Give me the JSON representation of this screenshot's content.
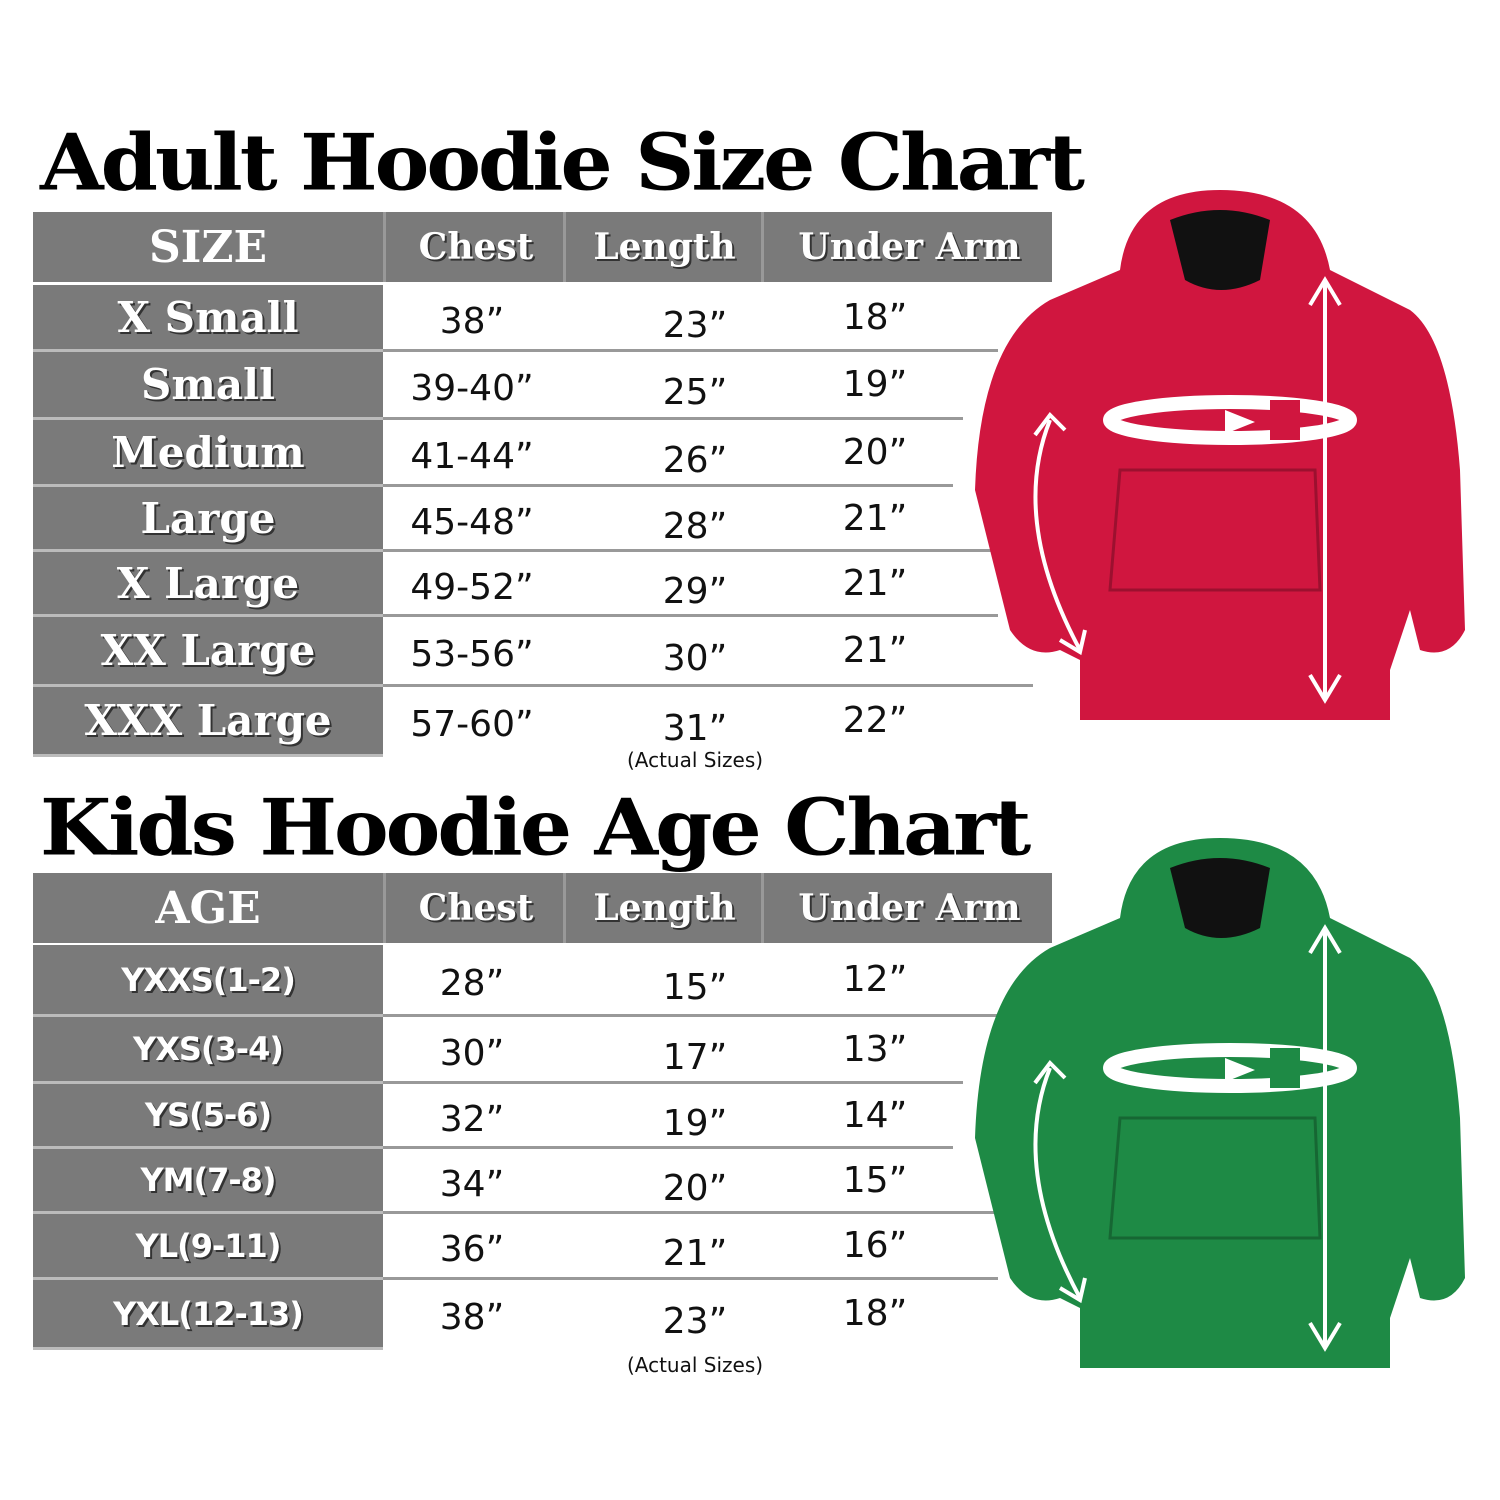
{
  "adult": {
    "title": "Adult Hoodie Size Chart",
    "headers": [
      "SIZE",
      "Chest",
      "Length",
      "Under Arm"
    ],
    "rows": [
      {
        "label": "X Small",
        "chest": "38”",
        "length": "23”",
        "under_arm": "18”"
      },
      {
        "label": "Small",
        "chest": "39-40”",
        "length": "25”",
        "under_arm": "19”"
      },
      {
        "label": "Medium",
        "chest": "41-44”",
        "length": "26”",
        "under_arm": "20”"
      },
      {
        "label": "Large",
        "chest": "45-48”",
        "length": "28”",
        "under_arm": "21”"
      },
      {
        "label": "X Large",
        "chest": "49-52”",
        "length": "29”",
        "under_arm": "21”"
      },
      {
        "label": "XX Large",
        "chest": "53-56”",
        "length": "30”",
        "under_arm": "21”"
      },
      {
        "label": "XXX Large",
        "chest": "57-60”",
        "length": "31”",
        "under_arm": "22”"
      }
    ],
    "note": "(Actual Sizes)",
    "hoodie_color": "#d0163f"
  },
  "kids": {
    "title": "Kids Hoodie Age Chart",
    "headers": [
      "AGE",
      "Chest",
      "Length",
      "Under Arm"
    ],
    "rows": [
      {
        "label": "YXXS(1-2)",
        "chest": "28”",
        "length": "15”",
        "under_arm": "12”"
      },
      {
        "label": "YXS(3-4)",
        "chest": "30”",
        "length": "17”",
        "under_arm": "13”"
      },
      {
        "label": "YS(5-6)",
        "chest": "32”",
        "length": "19”",
        "under_arm": "14”"
      },
      {
        "label": "YM(7-8)",
        "chest": "34”",
        "length": "20”",
        "under_arm": "15”"
      },
      {
        "label": "YL(9-11)",
        "chest": "36”",
        "length": "21”",
        "under_arm": "16”"
      },
      {
        "label": "YXL(12-13)",
        "chest": "38”",
        "length": "23”",
        "under_arm": "18”"
      }
    ],
    "note": "(Actual Sizes)",
    "hoodie_color": "#1e8a45"
  }
}
